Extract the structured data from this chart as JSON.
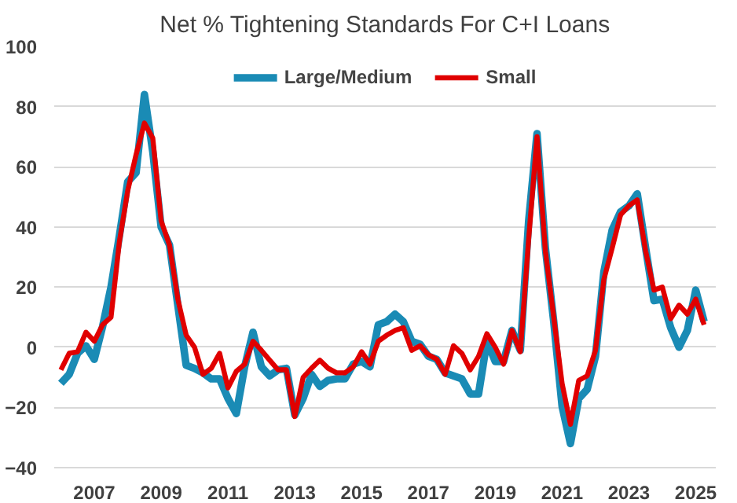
{
  "chart_data": {
    "type": "line",
    "title": "Net % Tightening Standards For C+I Loans",
    "x": [
      2006.0,
      2006.25,
      2006.5,
      2006.75,
      2007.0,
      2007.25,
      2007.5,
      2007.75,
      2008.0,
      2008.25,
      2008.5,
      2008.75,
      2009.0,
      2009.25,
      2009.5,
      2009.75,
      2010.0,
      2010.25,
      2010.5,
      2010.75,
      2011.0,
      2011.25,
      2011.5,
      2011.75,
      2012.0,
      2012.25,
      2012.5,
      2012.75,
      2013.0,
      2013.25,
      2013.5,
      2013.75,
      2014.0,
      2014.25,
      2014.5,
      2014.75,
      2015.0,
      2015.25,
      2015.5,
      2015.75,
      2016.0,
      2016.25,
      2016.5,
      2016.75,
      2017.0,
      2017.25,
      2017.5,
      2017.75,
      2018.0,
      2018.25,
      2018.5,
      2018.75,
      2019.0,
      2019.25,
      2019.5,
      2019.75,
      2020.0,
      2020.25,
      2020.5,
      2020.75,
      2021.0,
      2021.25,
      2021.5,
      2021.75,
      2022.0,
      2022.25,
      2022.5,
      2022.75,
      2023.0,
      2023.25,
      2023.5,
      2023.75,
      2024.0,
      2024.25,
      2024.5,
      2024.75,
      2025.0,
      2025.25
    ],
    "series": [
      {
        "name": "Large/Medium",
        "color": "#1a8bb5",
        "values": [
          -12,
          -9,
          -2,
          0.5,
          -4,
          7,
          20,
          37,
          55,
          58,
          84,
          65,
          40,
          34,
          14,
          -6,
          -7,
          -8.5,
          -10.5,
          -10.5,
          -17,
          -22,
          -6.5,
          5,
          -6.5,
          -9.5,
          -7.5,
          -7,
          -22.5,
          -17,
          -9,
          -13,
          -11,
          -10.5,
          -10.5,
          -5.6,
          -4.7,
          -6.5,
          7.5,
          8.5,
          11,
          8.5,
          2,
          1,
          -3,
          -4,
          -8.5,
          -9.5,
          -10.5,
          -15.5,
          -15.5,
          2,
          -4.7,
          -4.7,
          5.6,
          -1,
          42,
          71,
          33,
          8.5,
          -19.6,
          -32,
          -17,
          -14,
          -3,
          25,
          39,
          45,
          47,
          51,
          33,
          15.5,
          16,
          6.5,
          0,
          5.6,
          19,
          8.5
        ]
      },
      {
        "name": "Small",
        "color": "#e00000",
        "values": [
          -7.5,
          -2,
          -1.5,
          5,
          2,
          7.5,
          10,
          35,
          52,
          64,
          74.5,
          69.5,
          42,
          34,
          16,
          4,
          0,
          -9,
          -7,
          -2,
          -13.5,
          -8,
          -5.6,
          2,
          -1,
          -4.3,
          -7.5,
          -7.5,
          -23,
          -10,
          -7,
          -4.3,
          -7,
          -8.5,
          -8.5,
          -6.5,
          -1.5,
          -5.6,
          2,
          4,
          5.6,
          6.5,
          -1,
          0.5,
          -2.5,
          -4,
          -9,
          0.5,
          -2,
          -7.5,
          -3,
          4.5,
          0,
          -5.6,
          5.6,
          -1.5,
          36,
          70,
          32,
          10,
          -12,
          -25.6,
          -11,
          -9.5,
          -1,
          22.5,
          33,
          44,
          47,
          49,
          32,
          19,
          20,
          9.5,
          14,
          11,
          16,
          7.5
        ]
      }
    ],
    "xlim": [
      2005.8,
      2025.6
    ],
    "xticks": [
      2007,
      2009,
      2011,
      2013,
      2015,
      2017,
      2019,
      2021,
      2023,
      2025
    ],
    "ylim": [
      -40,
      100
    ],
    "yticks": [
      -40,
      -20,
      0,
      20,
      40,
      60,
      80,
      100
    ],
    "grid": "y",
    "legend": "top",
    "marker": "none",
    "line_style": "solid"
  }
}
